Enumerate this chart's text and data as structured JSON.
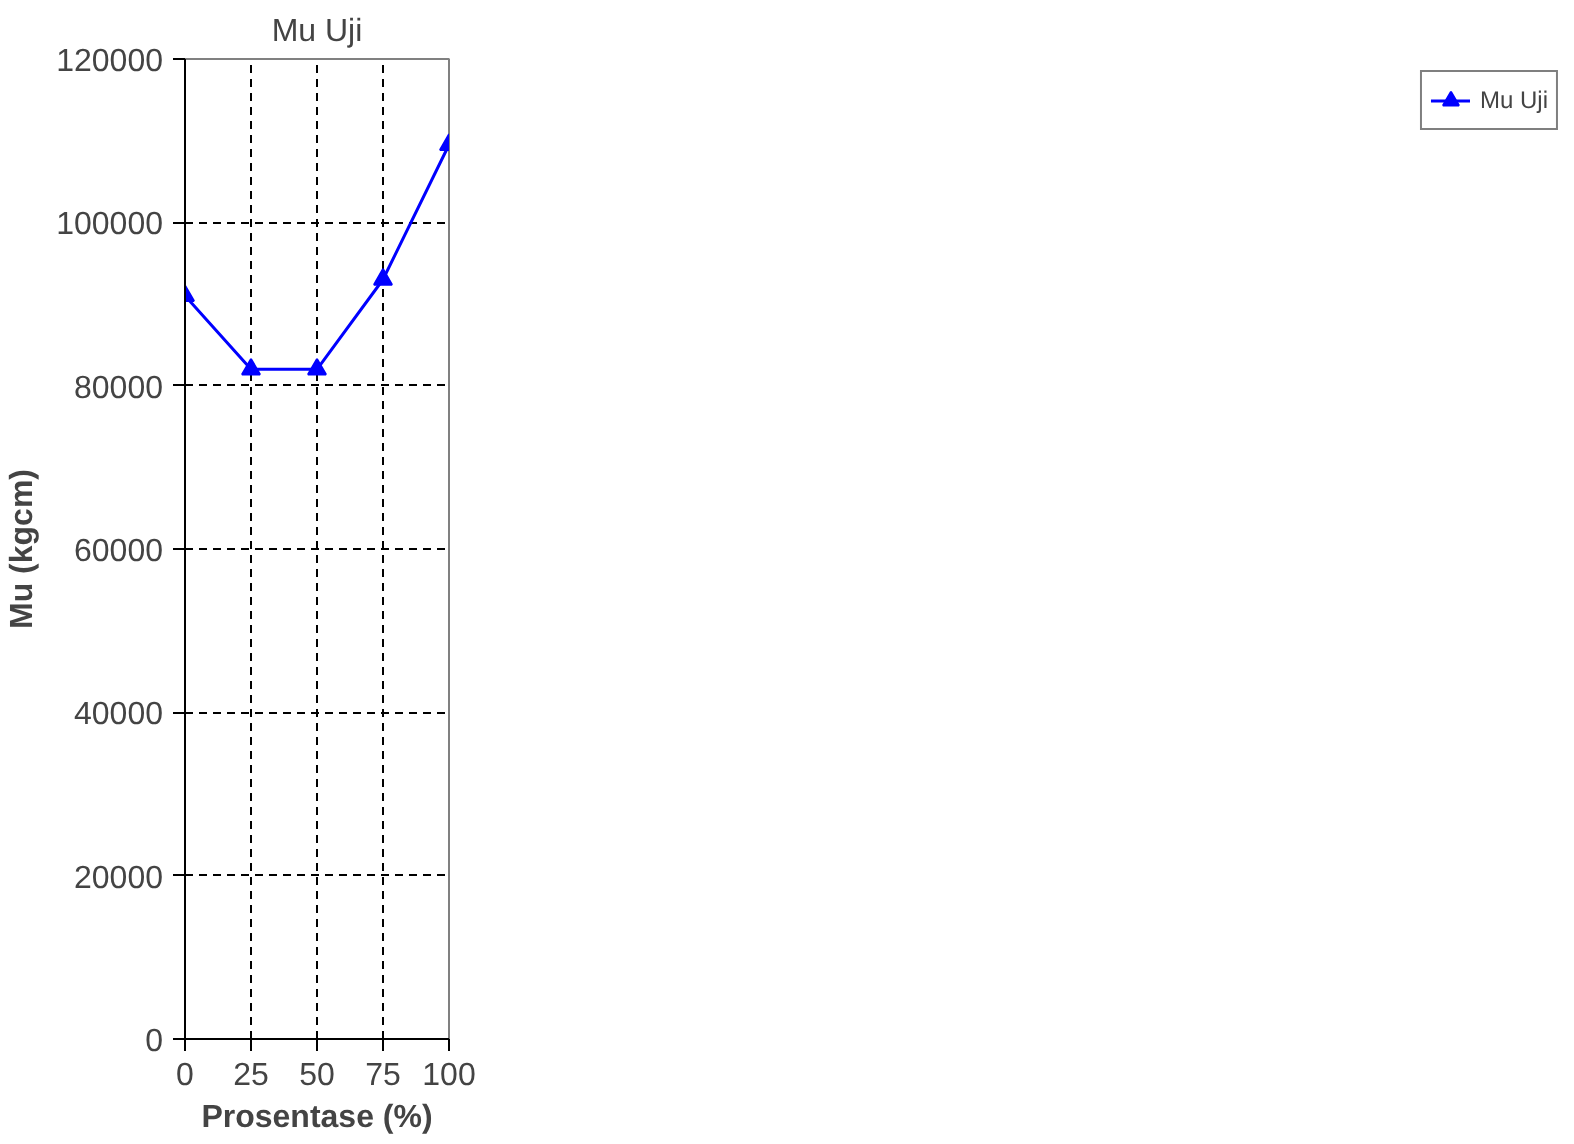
{
  "chart_data": {
    "type": "line",
    "title": "Mu Uji",
    "xlabel": "Prosentase (%)",
    "ylabel": "Mu (kgcm)",
    "x": [
      0,
      25,
      50,
      75,
      100
    ],
    "series": [
      {
        "name": "Mu Uji",
        "color": "#0000ff",
        "values": [
          91000,
          82000,
          82000,
          93000,
          109500
        ]
      }
    ],
    "xlim": [
      0,
      100
    ],
    "xticks": [
      0,
      25,
      50,
      75,
      100
    ],
    "ylim": [
      0,
      120000
    ],
    "yticks": [
      0,
      20000,
      40000,
      60000,
      80000,
      100000,
      120000
    ],
    "grid": true,
    "legend": "right",
    "marker": "triangle",
    "line_style": "solid"
  }
}
